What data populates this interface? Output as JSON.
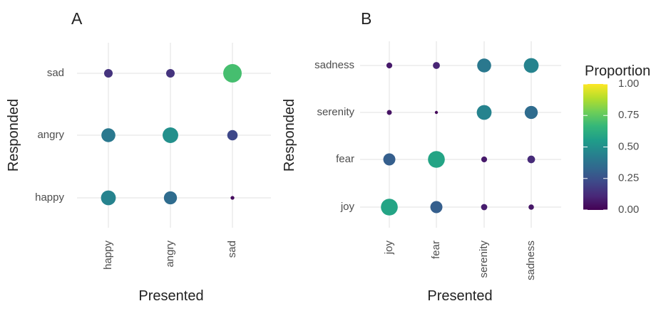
{
  "chart_data": [
    {
      "type": "bubble",
      "title": "A",
      "x_label": "Presented",
      "y_label": "Responded",
      "x_categories": [
        "happy",
        "angry",
        "sad"
      ],
      "y_categories": [
        "happy",
        "angry",
        "sad"
      ],
      "values": [
        [
          0.45,
          0.35,
          0.03
        ],
        [
          0.4,
          0.5,
          0.22
        ],
        [
          0.15,
          0.15,
          0.7
        ]
      ],
      "grid": true
    },
    {
      "type": "bubble",
      "title": "B",
      "x_label": "Presented",
      "y_label": "Responded",
      "x_categories": [
        "joy",
        "fear",
        "serenity",
        "sadness"
      ],
      "y_categories": [
        "joy",
        "fear",
        "serenity",
        "sadness"
      ],
      "values": [
        [
          0.58,
          0.3,
          0.08,
          0.06
        ],
        [
          0.3,
          0.58,
          0.07,
          0.12
        ],
        [
          0.05,
          0.02,
          0.45,
          0.35
        ],
        [
          0.07,
          0.1,
          0.4,
          0.45
        ]
      ],
      "grid": true
    }
  ],
  "legend": {
    "title": "Proportion",
    "lim": [
      0,
      1
    ],
    "ticks": [
      {
        "value": 0,
        "label": "0.00"
      },
      {
        "value": 0.25,
        "label": "0.25"
      },
      {
        "value": 0.5,
        "label": "0.50"
      },
      {
        "value": 0.75,
        "label": "0.75"
      },
      {
        "value": 1,
        "label": "1.00"
      }
    ],
    "colors": [
      "#440154",
      "#482878",
      "#3e4989",
      "#31688e",
      "#26828e",
      "#1f9e89",
      "#35b779",
      "#6ece58",
      "#b5de2b",
      "#fde725"
    ]
  }
}
